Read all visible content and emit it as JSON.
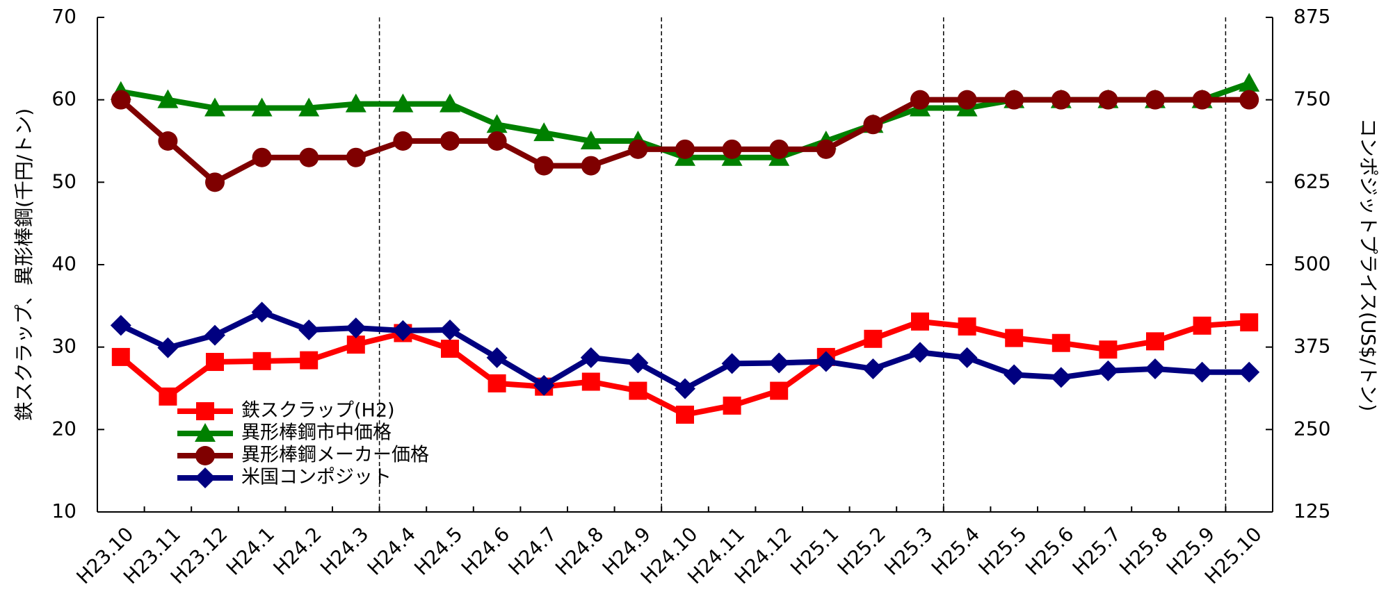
{
  "chart_data": {
    "type": "line",
    "y_label": "鉄スクラップ、異形棒鋼(千円/トン)",
    "y2_label": "コンポジットプライス(US$/トン)",
    "categories": [
      "H23.10",
      "H23.11",
      "H23.12",
      "H24.1",
      "H24.2",
      "H24.3",
      "H24.4",
      "H24.5",
      "H24.6",
      "H24.7",
      "H24.8",
      "H24.9",
      "H24.10",
      "H24.11",
      "H24.12",
      "H25.1",
      "H25.2",
      "H25.3",
      "H25.4",
      "H25.5",
      "H25.6",
      "H25.7",
      "H25.8",
      "H25.9",
      "H25.10"
    ],
    "ylim": [
      10,
      70
    ],
    "yticks": [
      10,
      20,
      30,
      40,
      50,
      60,
      70
    ],
    "y2lim": [
      125,
      875
    ],
    "y2ticks": [
      125,
      250,
      375,
      500,
      625,
      750,
      875
    ],
    "legend": "lower-left",
    "series": [
      {
        "name": "鉄スクラップ(H2)",
        "color": "#ff0000",
        "marker": "square",
        "values": [
          28.8,
          24,
          28.2,
          28.3,
          28.4,
          30.3,
          31.7,
          29.8,
          25.6,
          25.2,
          25.8,
          24.7,
          21.8,
          22.9,
          24.7,
          28.8,
          31,
          33.1,
          32.5,
          31.1,
          30.5,
          29.7,
          30.7,
          32.6,
          33
        ]
      },
      {
        "name": "異形棒鋼市中価格",
        "color": "#008000",
        "marker": "triangle",
        "values": [
          61,
          60,
          59,
          59,
          59,
          59.5,
          59.5,
          59.5,
          57,
          56,
          55,
          55,
          53,
          53,
          53,
          55,
          57,
          59,
          59,
          60,
          60,
          60,
          60,
          60,
          62
        ]
      },
      {
        "name": "異形棒鋼メーカー価格",
        "color": "#7f0000",
        "marker": "circle",
        "values": [
          60,
          55,
          50,
          53,
          53,
          53,
          55,
          55,
          55,
          52,
          52,
          54,
          54,
          54,
          54,
          54,
          57,
          60,
          60,
          60,
          60,
          60,
          60,
          60,
          60
        ]
      },
      {
        "name": "米国コンポジット",
        "color": "#000080",
        "marker": "diamond",
        "axis": "y2",
        "values": [
          408,
          374,
          393,
          428,
          401,
          404,
          400,
          401,
          359,
          317,
          359,
          351,
          312,
          350,
          351,
          353,
          342,
          367,
          359,
          333,
          329,
          339,
          342,
          337,
          337
        ]
      }
    ]
  }
}
